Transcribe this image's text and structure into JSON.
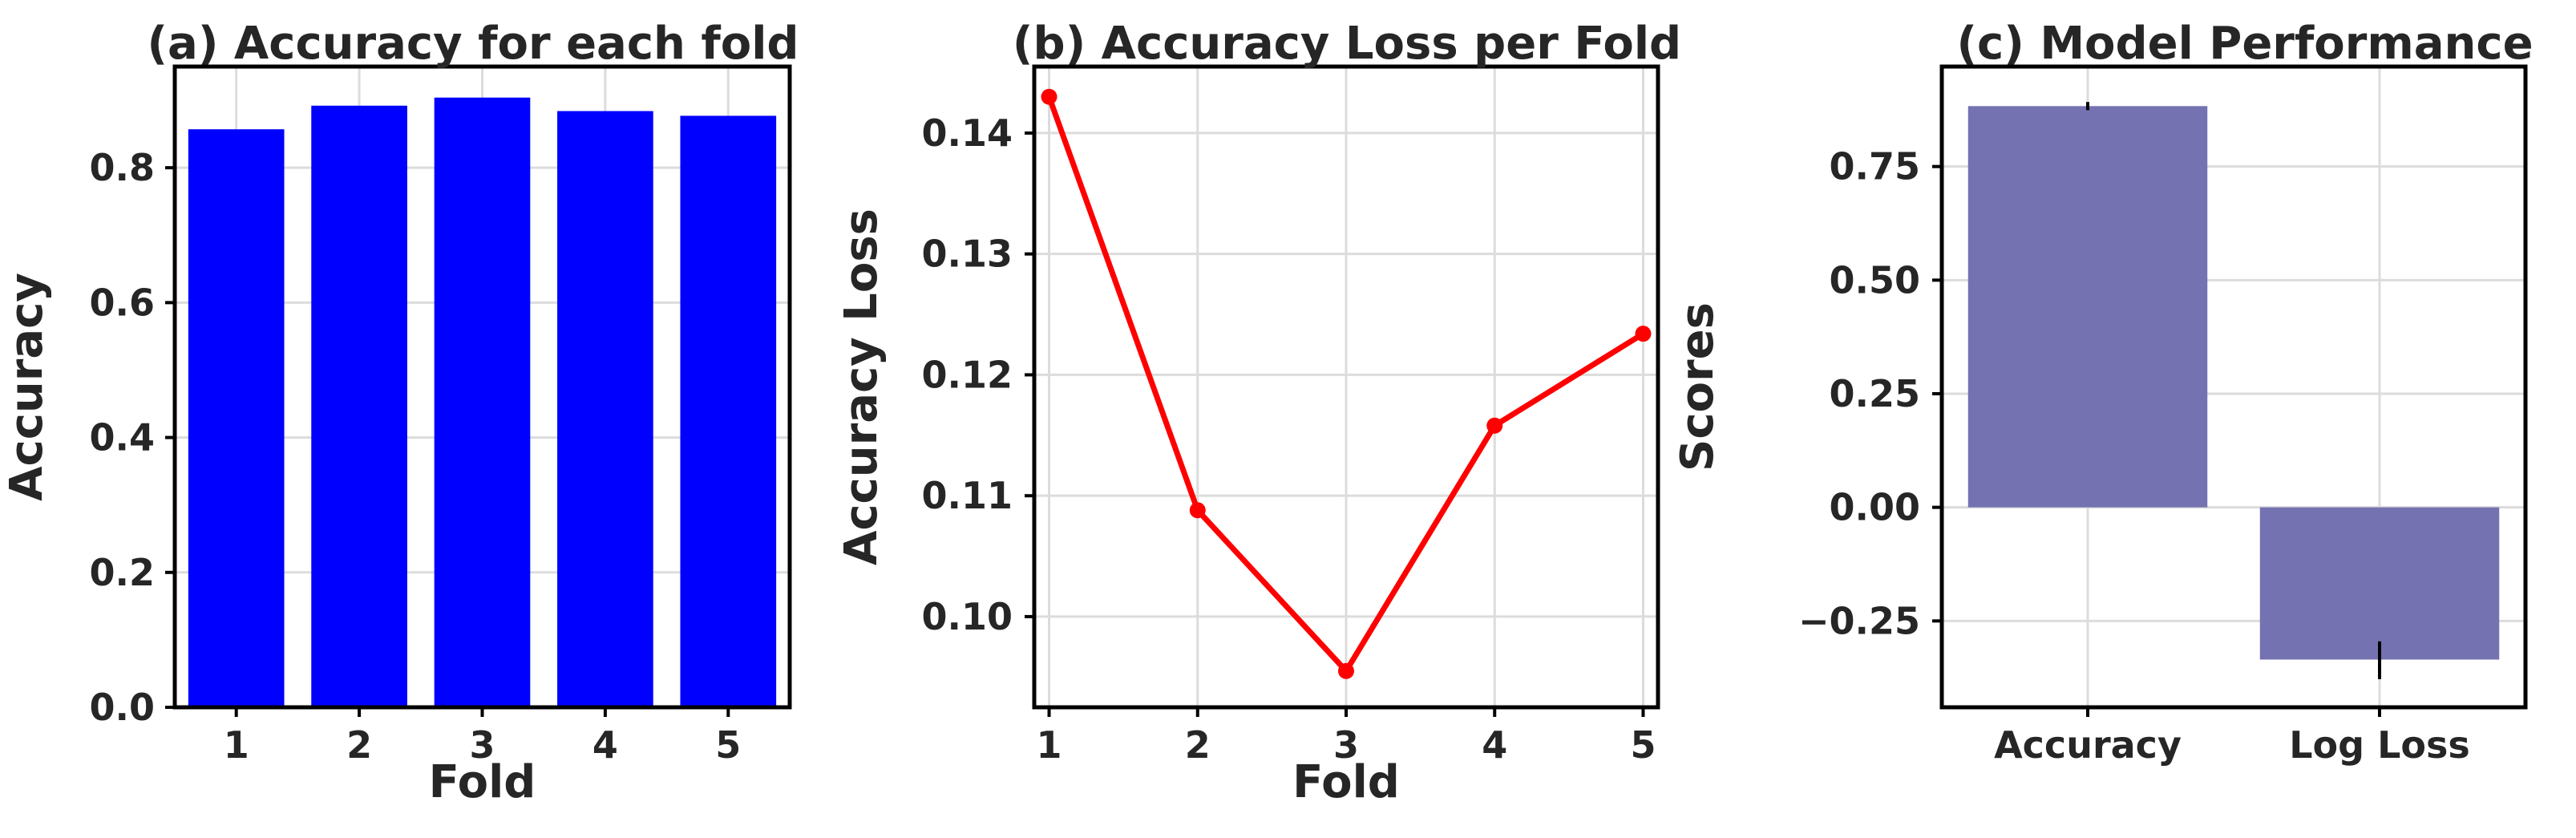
{
  "chart_data": [
    {
      "type": "bar",
      "title": "(a) Accuracy for each fold",
      "xlabel": "Fold",
      "ylabel": "Accuracy",
      "categories": [
        "1",
        "2",
        "3",
        "4",
        "5"
      ],
      "values": [
        0.857,
        0.892,
        0.904,
        0.884,
        0.877
      ],
      "ylim": [
        0,
        0.95
      ],
      "yticks": [
        0.0,
        0.2,
        0.4,
        0.6,
        0.8
      ],
      "ytick_labels": [
        "0.0",
        "0.2",
        "0.4",
        "0.6",
        "0.8"
      ],
      "grid": true,
      "color": "#0000ff"
    },
    {
      "type": "line",
      "title": "(b) Accuracy Loss per Fold",
      "xlabel": "Fold",
      "ylabel": "Accuracy Loss",
      "x": [
        1,
        2,
        3,
        4,
        5
      ],
      "xtick_labels": [
        "1",
        "2",
        "3",
        "4",
        "5"
      ],
      "values": [
        0.143,
        0.1088,
        0.0955,
        0.1158,
        0.1234
      ],
      "xlim": [
        0.9,
        5.1
      ],
      "ylim": [
        0.0925,
        0.1455
      ],
      "yticks": [
        0.1,
        0.11,
        0.12,
        0.13,
        0.14
      ],
      "ytick_labels": [
        "0.10",
        "0.11",
        "0.12",
        "0.13",
        "0.14"
      ],
      "grid": true,
      "color": "#ff0000"
    },
    {
      "type": "bar",
      "title": "(c) Model Performance",
      "xlabel": "",
      "ylabel": "Scores",
      "categories": [
        "Accuracy",
        "Log Loss"
      ],
      "values": [
        0.883,
        -0.335
      ],
      "error": [
        [
          0.874,
          0.892
        ],
        [
          -0.378,
          -0.295
        ]
      ],
      "ylim": [
        -0.44,
        0.97
      ],
      "yticks": [
        -0.25,
        0.0,
        0.25,
        0.5,
        0.75
      ],
      "ytick_labels": [
        "−0.25",
        "0.00",
        "0.25",
        "0.50",
        "0.75"
      ],
      "grid": true,
      "color": "#7472b0"
    }
  ]
}
